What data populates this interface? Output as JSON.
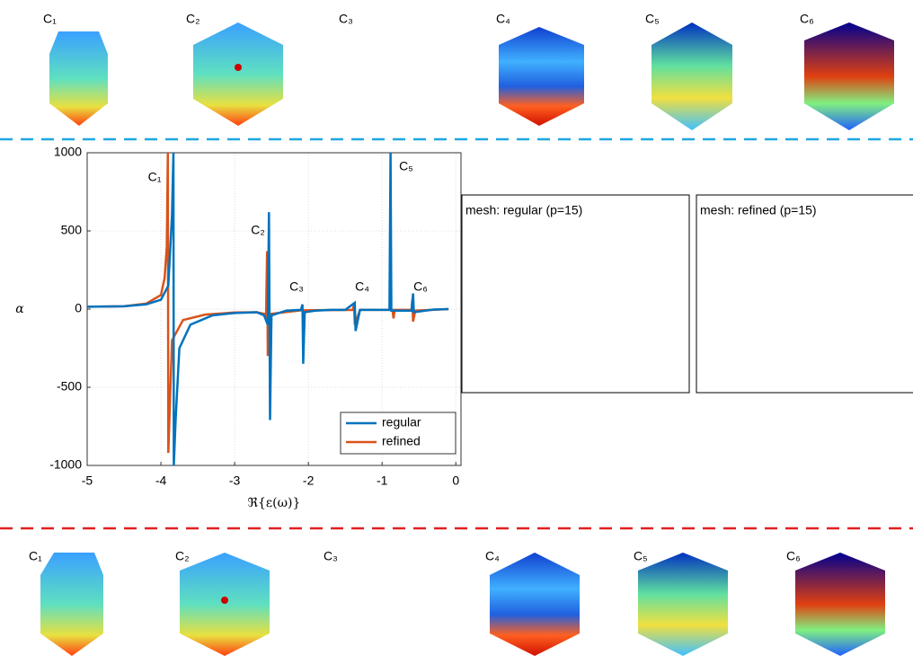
{
  "top_labels": [
    "C₁",
    "C₂",
    "C₃",
    "C₄",
    "C₅",
    "C₆"
  ],
  "bottom_labels": [
    "C₁",
    "C₂",
    "C₃",
    "C₄",
    "C₅",
    "C₆"
  ],
  "panels": [
    "mesh: regular (p=15)",
    "mesh: refined (p=15)"
  ],
  "chart_data": {
    "type": "line",
    "xlabel": "ℜ{ε(ω)}",
    "ylabel": "α",
    "annotations": [
      "C₁",
      "C₂",
      "C₃",
      "C₄",
      "C₅",
      "C₆"
    ],
    "xlim": [
      -5,
      0.07
    ],
    "ylim": [
      -1000,
      1000
    ],
    "xticks": [
      -5,
      -4,
      -3,
      -2,
      -1,
      0
    ],
    "yticks": [
      -1000,
      -500,
      0,
      500,
      1000
    ],
    "grid": true,
    "legend": "lower right",
    "series": [
      {
        "name": "regular",
        "color": "#0072bd",
        "x": [
          -5,
          -4.5,
          -4.2,
          -4.0,
          -3.9,
          -3.85,
          -3.83,
          -3.825,
          -3.8,
          -3.75,
          -3.6,
          -3.3,
          -3.0,
          -2.7,
          -2.6,
          -2.55,
          -2.535,
          -2.52,
          -2.5,
          -2.3,
          -2.1,
          -2.08,
          -2.07,
          -2.05,
          -1.9,
          -1.7,
          -1.5,
          -1.37,
          -1.36,
          -1.3,
          -0.9,
          -0.885,
          -0.875,
          -0.6,
          -0.58,
          -0.57,
          -0.3,
          -0.1
        ],
        "values": [
          15,
          18,
          30,
          60,
          150,
          600,
          1000,
          -1000,
          -700,
          -250,
          -100,
          -40,
          -25,
          -20,
          -40,
          -100,
          620,
          -710,
          -40,
          -10,
          -5,
          30,
          -350,
          -20,
          -10,
          -5,
          -5,
          40,
          -140,
          -5,
          -5,
          1000,
          -10,
          -10,
          100,
          -20,
          -3,
          0
        ]
      },
      {
        "name": "refined",
        "color": "#d95319",
        "x": [
          -5,
          -4.5,
          -4.2,
          -4.0,
          -3.95,
          -3.92,
          -3.905,
          -3.9,
          -3.85,
          -3.7,
          -3.4,
          -3.0,
          -2.7,
          -2.6,
          -2.575,
          -2.56,
          -2.55,
          -2.5,
          -2.1,
          -1.4,
          -1.38,
          -1.37,
          -1.3,
          -0.86,
          -0.845,
          -0.83,
          -0.6,
          -0.59,
          -0.58,
          -0.55,
          -0.1
        ],
        "values": [
          15,
          18,
          35,
          90,
          200,
          400,
          1000,
          -920,
          -200,
          -70,
          -35,
          -22,
          -20,
          -30,
          -60,
          370,
          -300,
          -30,
          -8,
          -5,
          30,
          -100,
          -5,
          -5,
          -60,
          -5,
          -5,
          60,
          -80,
          -10,
          0
        ]
      }
    ]
  }
}
